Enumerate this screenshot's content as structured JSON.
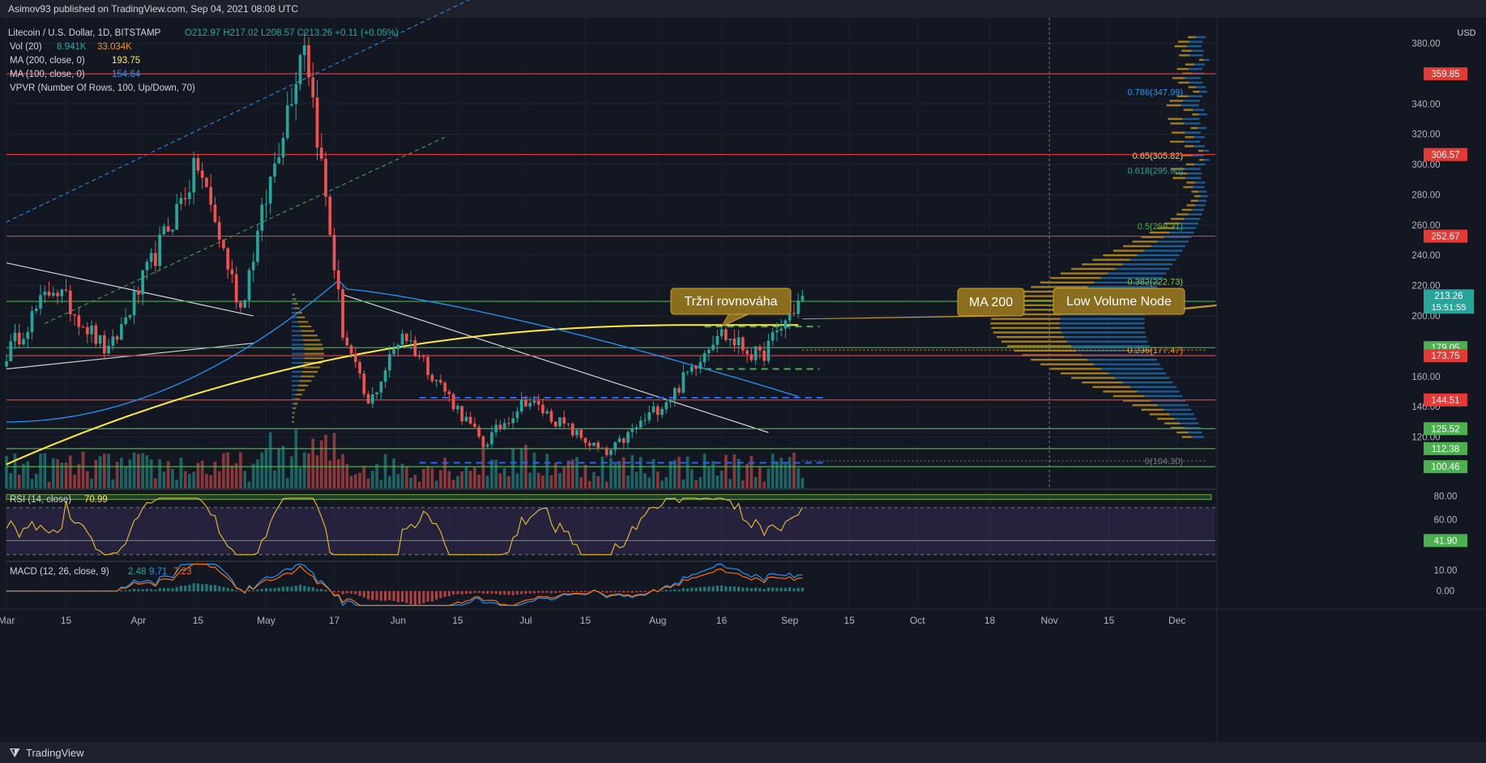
{
  "header": {
    "published": "Asimov93 published on TradingView.com, Sep 04, 2021 08:08 UTC",
    "symbol": "Litecoin / U.S. Dollar, 1D, BITSTAMP",
    "ohlc": "O212.97  H217.02  L208.57  C213.26  +0.11 (+0.05%)"
  },
  "legend": [
    {
      "label": "Vol (20)",
      "v1": "8.941K",
      "v2": "33.034K",
      "c1": "#26a69a",
      "c2": "#f7931a"
    },
    {
      "label": "MA (200, close, 0)",
      "v1": "193.75",
      "v2": "",
      "c1": "#ffeb3b",
      "c2": ""
    },
    {
      "label": "MA (100, close, 0)",
      "v1": "154.64",
      "v2": "",
      "c1": "#2196f3",
      "c2": ""
    },
    {
      "label": "VPVR (Number Of Rows, 100, Up/Down, 70)",
      "v1": "",
      "v2": "",
      "c1": "",
      "c2": ""
    }
  ],
  "axis": {
    "currency": "USD",
    "price_ticks": [
      380,
      340,
      320,
      300,
      280,
      260,
      240,
      220,
      200,
      160,
      140,
      120
    ],
    "price_tick_labels": [
      "380.00",
      "340.00",
      "320.00",
      "300.00",
      "280.00",
      "260.00",
      "240.00",
      "220.00",
      "200.00",
      "160.00",
      "140.00",
      "120.00"
    ],
    "time_labels": [
      "Mar",
      "15",
      "Apr",
      "15",
      "May",
      "17",
      "Jun",
      "15",
      "Jul",
      "15",
      "Aug",
      "16",
      "Sep",
      "15",
      "Oct",
      "18",
      "Nov",
      "15",
      "Dec"
    ]
  },
  "price_levels": [
    {
      "value": 359.85,
      "label": "359.85",
      "color": "#e53935"
    },
    {
      "value": 306.57,
      "label": "306.57",
      "color": "#e53935"
    },
    {
      "value": 252.67,
      "label": "252.67",
      "color": "#e53935"
    },
    {
      "value": 209.6,
      "label": "209.60",
      "color": "#4caf50"
    },
    {
      "value": 179.05,
      "label": "179.05",
      "color": "#4caf50"
    },
    {
      "value": 173.75,
      "label": "173.75",
      "color": "#e53935"
    },
    {
      "value": 144.51,
      "label": "144.51",
      "color": "#e53935"
    },
    {
      "value": 125.52,
      "label": "125.52",
      "color": "#4caf50"
    },
    {
      "value": 112.38,
      "label": "112.38",
      "color": "#4caf50"
    },
    {
      "value": 100.46,
      "label": "100.46",
      "color": "#4caf50"
    }
  ],
  "current_price": {
    "value": 213.26,
    "label": "213.26",
    "countdown": "15:51:55",
    "color": "#26a69a"
  },
  "fib_levels": [
    {
      "value": 347.99,
      "label": "0.786(347.99)",
      "color": "#2196f3"
    },
    {
      "value": 305.82,
      "label": "0.65(305.82)",
      "color": "#ffd54f"
    },
    {
      "value": 295.9,
      "label": "0.618(295.90)",
      "color": "#26a69a"
    },
    {
      "value": 259.31,
      "label": "0.5(259.31)",
      "color": "#4caf50"
    },
    {
      "value": 222.73,
      "label": "0.382(222.73)",
      "color": "#8bc34a"
    },
    {
      "value": 177.47,
      "label": "0.236(177.47)",
      "color": "#ff9800"
    },
    {
      "value": 104.3,
      "label": "0(104.30)",
      "color": "#787b86"
    }
  ],
  "annotations": [
    {
      "text": "Tržní rovnováha"
    },
    {
      "text": "MA 200"
    },
    {
      "text": "Low Volume Node"
    }
  ],
  "rsi": {
    "label": "RSI (14, close)",
    "value": "70.99",
    "ticks": [
      80,
      60,
      40
    ],
    "tick_labels": [
      "80.00",
      "60.00",
      "40.00"
    ],
    "marker": "41.90"
  },
  "macd": {
    "label": "MACD (12, 26, close, 9)",
    "v1": "2.48",
    "v2": "9.71",
    "v3": "7.23",
    "tick_labels": [
      "10.00",
      "0.00"
    ]
  },
  "footer": {
    "brand": "TradingView"
  },
  "chart_data": {
    "type": "candlestick",
    "symbol": "LTCUSD",
    "interval": "1D",
    "ylim": [
      90,
      390
    ],
    "x_range": [
      "2021-03-01",
      "2021-12-10"
    ],
    "key_points": [
      {
        "date": "2021-03-01",
        "price": 175
      },
      {
        "date": "2021-03-12",
        "price": 220
      },
      {
        "date": "2021-03-25",
        "price": 175
      },
      {
        "date": "2021-04-15",
        "price": 300
      },
      {
        "date": "2021-04-25",
        "price": 205
      },
      {
        "date": "2021-05-10",
        "price": 386
      },
      {
        "date": "2021-05-19",
        "price": 190
      },
      {
        "date": "2021-05-25",
        "price": 140
      },
      {
        "date": "2021-06-02",
        "price": 190
      },
      {
        "date": "2021-06-21",
        "price": 115
      },
      {
        "date": "2021-07-01",
        "price": 145
      },
      {
        "date": "2021-07-20",
        "price": 108
      },
      {
        "date": "2021-08-05",
        "price": 150
      },
      {
        "date": "2021-08-15",
        "price": 190
      },
      {
        "date": "2021-08-25",
        "price": 172
      },
      {
        "date": "2021-09-04",
        "price": 213.26
      }
    ],
    "grid": true,
    "legend_position": "top-left"
  }
}
